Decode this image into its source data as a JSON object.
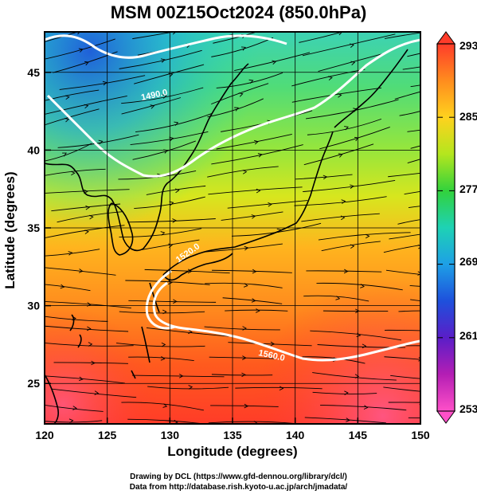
{
  "title": "MSM 00Z15Oct2024 (850.0hPa)",
  "map": {
    "xlabel": "Longitude (degrees)",
    "ylabel": "Latitude  (degrees)",
    "lon_ticks": [
      "120",
      "125",
      "130",
      "135",
      "140",
      "145",
      "150"
    ],
    "lat_ticks": [
      "25",
      "30",
      "35",
      "40",
      "45"
    ],
    "lon_range": [
      120,
      150
    ],
    "lat_range": [
      22.4,
      47.6
    ],
    "gridlines": true,
    "contour_labels": [
      "1490.0",
      "1560.0",
      "1520.0"
    ],
    "fields": [
      "temperature (color shading)",
      "wind streamlines",
      "geopotential height contours (white)"
    ]
  },
  "colorbar": {
    "labels": [
      "293",
      "285",
      "277",
      "269",
      "261",
      "253"
    ],
    "min": 253,
    "max": 293,
    "colors": [
      "#ff3c2a",
      "#ff8c1e",
      "#ffd21e",
      "#b4e61e",
      "#32d23c",
      "#1ed2b4",
      "#1ea0e6",
      "#1e50dc",
      "#5a1ec8",
      "#b41eb4",
      "#ff50c8"
    ]
  },
  "credits": {
    "line1": "Drawing by DCL (https://www.gfd-dennou.org/library/dcl/)",
    "line2": "Data from http://database.rish.kyoto-u.ac.jp/arch/jmadata/"
  }
}
